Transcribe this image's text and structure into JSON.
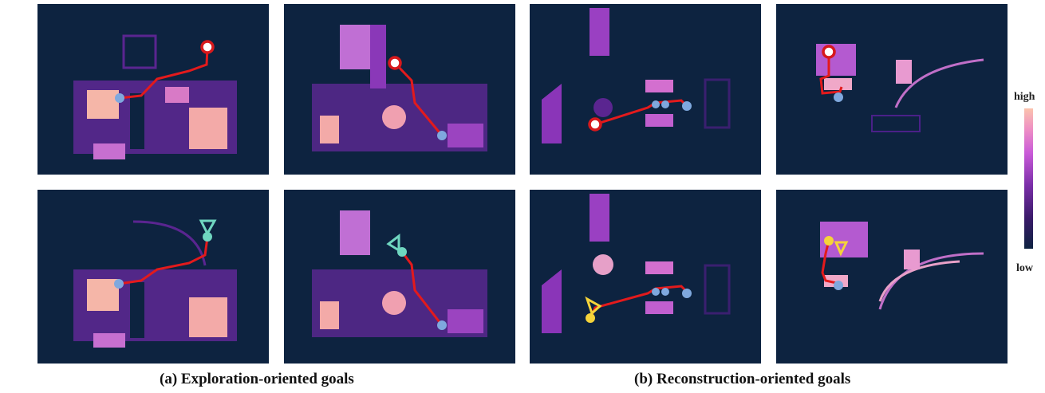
{
  "captions": {
    "exploration": "(a) Exploration-oriented goals",
    "reconstruction": "(b) Reconstruction-oriented goals"
  },
  "colorbar": {
    "high": "high",
    "low": "low"
  },
  "colors": {
    "background": "#0d2340",
    "path": "#e31a1c",
    "agent": "#7fa8de",
    "goal_marker_red": "#d7191c",
    "view_cone_teal": "#6fd6c0",
    "goal_yellow": "#f5d33a"
  }
}
